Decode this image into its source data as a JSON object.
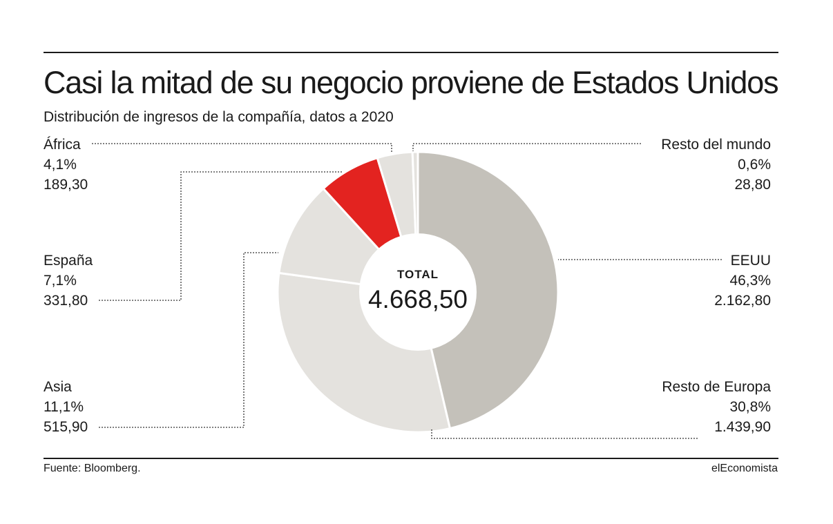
{
  "title": "Casi la mitad de su negocio proviene de Estados Unidos",
  "subtitle": "Distribución de ingresos de la compañía, datos a 2020",
  "source": "Fuente: Bloomberg.",
  "brand": "elEconomista",
  "chart_data": {
    "type": "pie",
    "center_label": "TOTAL",
    "total": "4.668,50",
    "slices": [
      {
        "name": "EEUU",
        "percent_label": "46,3%",
        "value_label": "2.162,80",
        "value": 2162.8,
        "color": "#c4c1ba"
      },
      {
        "name": "Resto de Europa",
        "percent_label": "30,8%",
        "value_label": "1.439,90",
        "value": 1439.9,
        "color": "#e4e2de"
      },
      {
        "name": "Asia",
        "percent_label": "11,1%",
        "value_label": "515,90",
        "value": 515.9,
        "color": "#e4e2de"
      },
      {
        "name": "España",
        "percent_label": "7,1%",
        "value_label": "331,80",
        "value": 331.8,
        "color": "#e32320"
      },
      {
        "name": "África",
        "percent_label": "4,1%",
        "value_label": "189,30",
        "value": 189.3,
        "color": "#e4e2de"
      },
      {
        "name": "Resto del mundo",
        "percent_label": "0,6%",
        "value_label": "28,80",
        "value": 28.8,
        "color": "#e4e2de"
      }
    ]
  }
}
